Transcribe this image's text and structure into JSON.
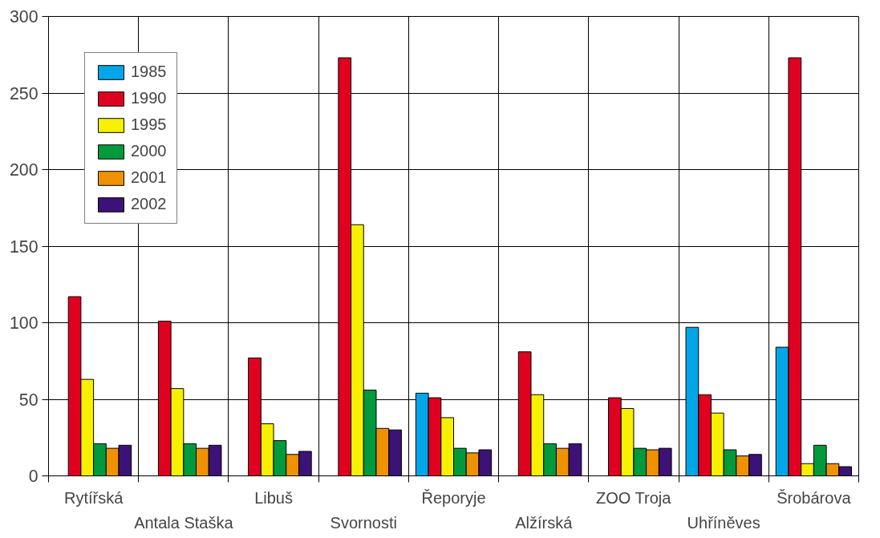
{
  "chart_data": {
    "type": "bar",
    "categories": [
      "Rytířská",
      "Antala Staška",
      "Libuš",
      "Svornosti",
      "Řeporyje",
      "Alžírská",
      "ZOO Troja",
      "Uhříněves",
      "Šrobárova"
    ],
    "series": [
      {
        "name": "1985",
        "color": "#00a6e8",
        "values": [
          null,
          null,
          null,
          null,
          54,
          null,
          null,
          97,
          84
        ]
      },
      {
        "name": "1990",
        "color": "#e0001f",
        "values": [
          117,
          101,
          77,
          273,
          51,
          81,
          51,
          53,
          273
        ]
      },
      {
        "name": "1995",
        "color": "#f7f000",
        "values": [
          63,
          57,
          34,
          164,
          38,
          53,
          44,
          41,
          8
        ]
      },
      {
        "name": "2000",
        "color": "#009a3d",
        "values": [
          21,
          21,
          23,
          56,
          18,
          21,
          18,
          17,
          20
        ]
      },
      {
        "name": "2001",
        "color": "#ef9200",
        "values": [
          18,
          18,
          14,
          31,
          15,
          18,
          17,
          13,
          8
        ]
      },
      {
        "name": "2002",
        "color": "#3c1278",
        "values": [
          20,
          20,
          16,
          30,
          17,
          21,
          18,
          14,
          6
        ]
      }
    ],
    "ylim": [
      0,
      300
    ],
    "yticks": [
      0,
      50,
      100,
      150,
      200,
      250,
      300
    ],
    "grid": true,
    "legend": "top left"
  }
}
